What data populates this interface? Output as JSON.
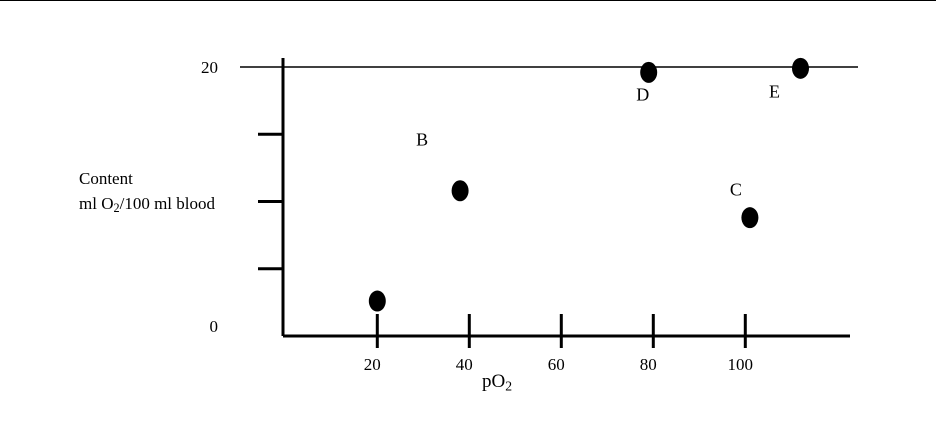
{
  "chart_data": {
    "type": "scatter",
    "xlabel": {
      "base": "pO",
      "sub": "2"
    },
    "ylabel": {
      "line1": "Content",
      "line2_pre": "ml O",
      "line2_sub": "2",
      "line2_post": "/100 ml blood"
    },
    "x_ticks": [
      {
        "value": 20,
        "label": "20"
      },
      {
        "value": 40,
        "label": "40"
      },
      {
        "value": 60,
        "label": "60"
      },
      {
        "value": 80,
        "label": "80"
      },
      {
        "value": 100,
        "label": "100"
      }
    ],
    "y_ticks": [
      {
        "value": 0,
        "label": "0"
      },
      {
        "value": 5,
        "label": ""
      },
      {
        "value": 10,
        "label": ""
      },
      {
        "value": 15,
        "label": ""
      },
      {
        "value": 20,
        "label": "20"
      }
    ],
    "xlim": [
      -0.5,
      122
    ],
    "ylim": [
      0,
      20
    ],
    "reference_line": {
      "y": 20
    },
    "points": [
      {
        "x": 20,
        "y": 2.6,
        "label": ""
      },
      {
        "x": 38,
        "y": 10.8,
        "label": "B"
      },
      {
        "x": 101,
        "y": 8.8,
        "label": "C"
      },
      {
        "x": 79,
        "y": 19.6,
        "label": "D"
      },
      {
        "x": 112,
        "y": 19.9,
        "label": "E"
      }
    ],
    "grid": false,
    "legend": "none",
    "colors": {
      "ink": "#000000",
      "background": "#ffffff"
    }
  }
}
